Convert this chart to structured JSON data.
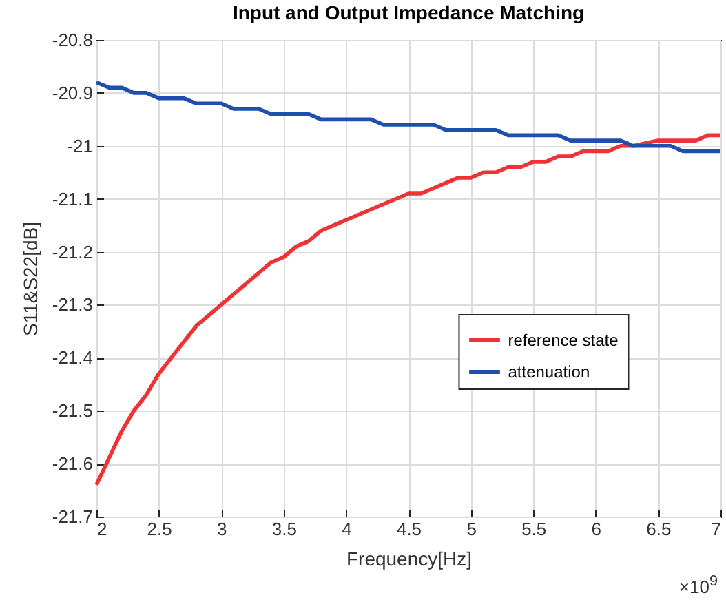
{
  "chart_data": {
    "type": "line",
    "title": "Input and Output Impedance Matching",
    "xlabel": "Frequency[Hz]",
    "ylabel": "S11&S22[dB]",
    "xlim": [
      2,
      7
    ],
    "xticks": [
      2,
      2.5,
      3,
      3.5,
      4,
      4.5,
      5,
      5.5,
      6,
      6.5,
      7
    ],
    "ylim": [
      -21.7,
      -20.8
    ],
    "yticks": [
      -21.7,
      -21.6,
      -21.5,
      -21.4,
      -21.3,
      -21.2,
      -21.1,
      -21,
      -20.9,
      -20.8
    ],
    "grid": true,
    "legend": "right",
    "line_style": "solid",
    "marker": "none",
    "annotations": [
      "×10$^{9}$"
    ],
    "series": [
      {
        "name": "reference state",
        "color": "#ee3236",
        "x": [
          2,
          2.2,
          2.3,
          2.4,
          2.5,
          2.8,
          3.0,
          3.4,
          3.5,
          3.6,
          3.7,
          3.8,
          4.0,
          4.2,
          4.5,
          4.6,
          4.9,
          5.0,
          5.1,
          5.2,
          5.3,
          5.4,
          5.5,
          5.6,
          5.7,
          5.8,
          5.9,
          6.1,
          6.2,
          6.3,
          6.5,
          6.8,
          6.9,
          7.0
        ],
        "values": [
          -21.64,
          -21.54,
          -21.5,
          -21.47,
          -21.43,
          -21.34,
          -21.3,
          -21.22,
          -21.21,
          -21.19,
          -21.18,
          -21.16,
          -21.14,
          -21.12,
          -21.09,
          -21.09,
          -21.06,
          -21.06,
          -21.05,
          -21.05,
          -21.04,
          -21.04,
          -21.03,
          -21.03,
          -21.02,
          -21.02,
          -21.01,
          -21.01,
          -21.0,
          -21.0,
          -20.99,
          -20.99,
          -20.98,
          -20.98
        ]
      },
      {
        "name": "attenuation",
        "color": "#1f4fae",
        "x": [
          2.0,
          2.1,
          2.2,
          2.3,
          2.4,
          2.5,
          2.7,
          2.8,
          3.0,
          3.1,
          3.3,
          3.4,
          3.7,
          3.8,
          4.2,
          4.3,
          4.7,
          4.8,
          5.2,
          5.3,
          5.7,
          5.8,
          6.2,
          6.3,
          6.6,
          6.7,
          7.0
        ],
        "values": [
          -20.88,
          -20.89,
          -20.89,
          -20.9,
          -20.9,
          -20.91,
          -20.91,
          -20.92,
          -20.92,
          -20.93,
          -20.93,
          -20.94,
          -20.94,
          -20.95,
          -20.95,
          -20.96,
          -20.96,
          -20.97,
          -20.97,
          -20.98,
          -20.98,
          -20.99,
          -20.99,
          -21.0,
          -21.0,
          -21.01,
          -21.01
        ]
      }
    ]
  }
}
